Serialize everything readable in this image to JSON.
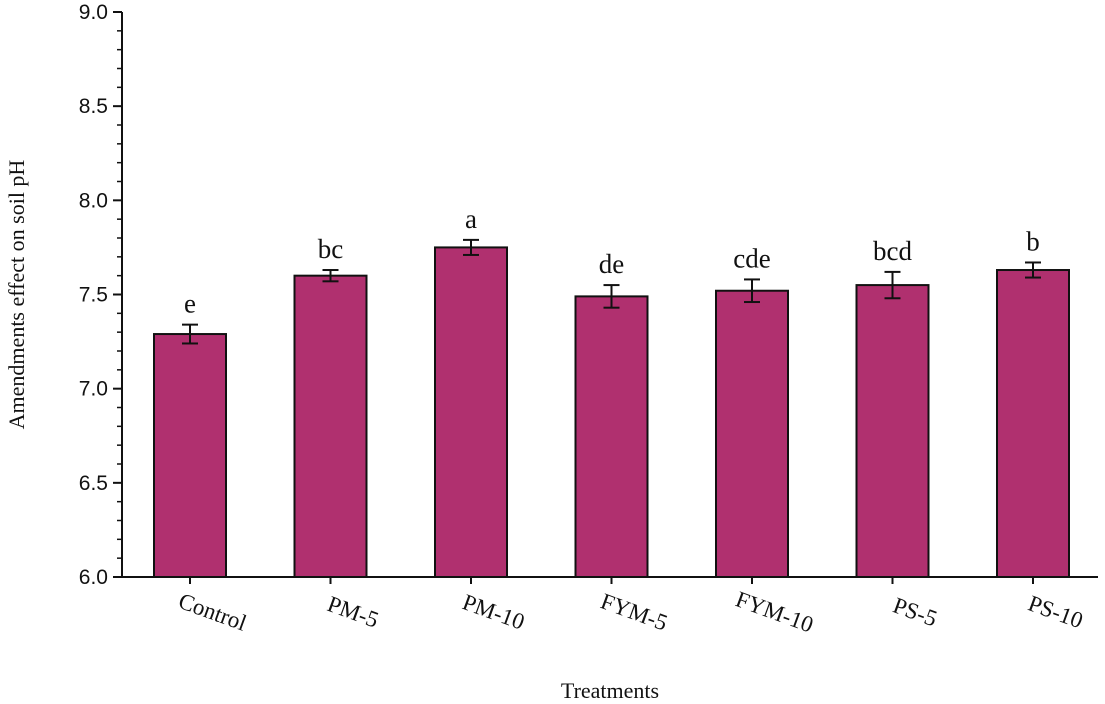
{
  "chart_data": {
    "type": "bar",
    "title": "",
    "xlabel": "Treatments",
    "ylabel": "Amendments effect on soil pH",
    "ylim": [
      6.0,
      9.0
    ],
    "yticks": [
      "6.0",
      "6.5",
      "7.0",
      "7.5",
      "8.0",
      "8.5",
      "9.0"
    ],
    "categories": [
      "Control",
      "PM-5",
      "PM-10",
      "FYM-5",
      "FYM-10",
      "PS-5",
      "PS-10"
    ],
    "values": [
      7.29,
      7.6,
      7.75,
      7.49,
      7.52,
      7.55,
      7.63
    ],
    "errors": [
      0.05,
      0.03,
      0.04,
      0.06,
      0.06,
      0.07,
      0.04
    ],
    "significance_letters": [
      "e",
      "bc",
      "a",
      "de",
      "cde",
      "bcd",
      "b"
    ],
    "bar_color": "#b0306f",
    "bar_edge_color": "#111111",
    "grid": false
  }
}
